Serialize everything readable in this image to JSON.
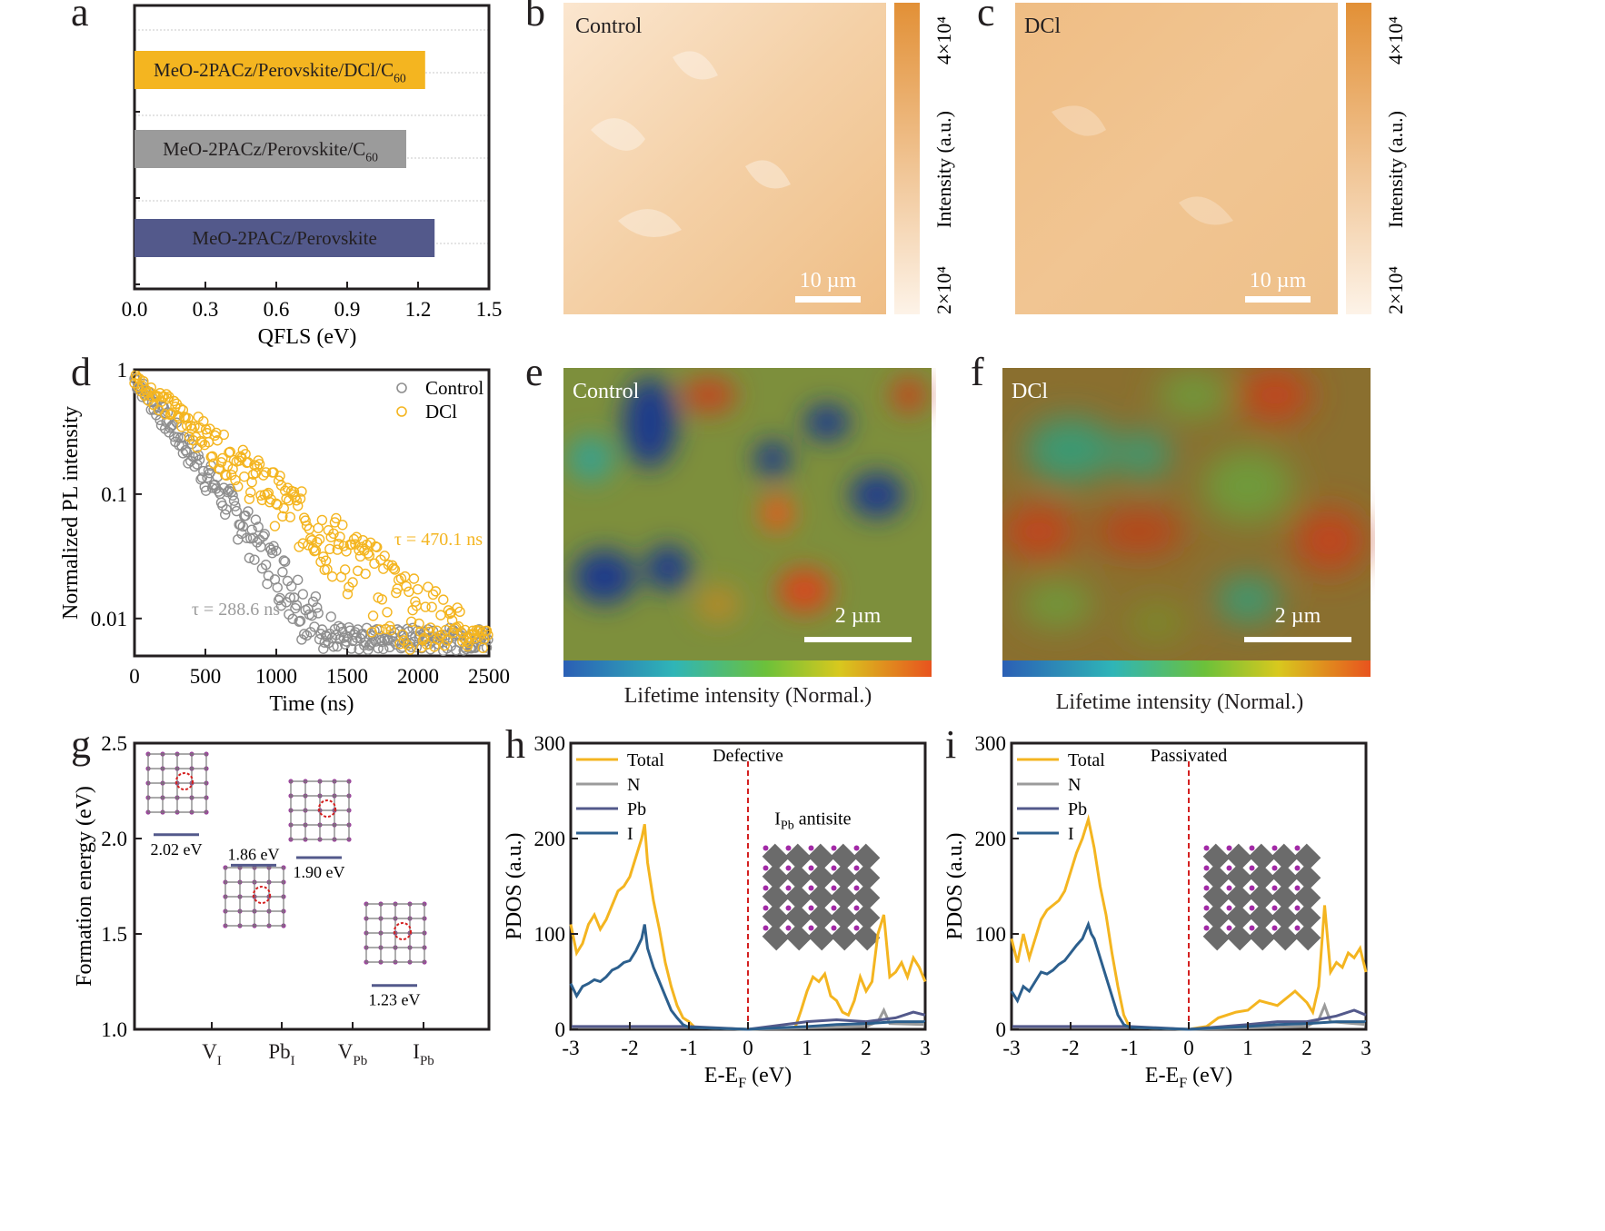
{
  "panels": {
    "a": {
      "letter": "a"
    },
    "b": {
      "letter": "b",
      "label": "Control",
      "scale_label": "10 µm",
      "cbar_max": "4×10⁴",
      "cbar_min": "2×10⁴",
      "cbar_title": "Intensity (a.u.)"
    },
    "c": {
      "letter": "c",
      "label": "DCl",
      "scale_label": "10 µm",
      "cbar_max": "4×10⁴",
      "cbar_min": "2×10⁴",
      "cbar_title": "Intensity (a.u.)"
    },
    "d": {
      "letter": "d"
    },
    "e": {
      "letter": "e",
      "label": "Control",
      "scale_label": "2 µm",
      "cbar_title": "Lifetime intensity (Normal.)"
    },
    "f": {
      "letter": "f",
      "label": "DCl",
      "scale_label": "2 µm",
      "cbar_title": "Lifetime intensity (Normal.)"
    },
    "g": {
      "letter": "g"
    },
    "h": {
      "letter": "h",
      "annotation": "Defective"
    },
    "i": {
      "letter": "i",
      "annotation": "Passivated"
    }
  },
  "colors": {
    "yellow": "#f4b520",
    "gray": "#9b9b9b",
    "navy": "#53598b",
    "blue": "#2c5f8d",
    "red_dash": "#d42020",
    "pl_orange": "#e59532"
  },
  "chart_data": [
    {
      "panel": "a",
      "type": "bar",
      "orientation": "horizontal",
      "categories": [
        "MeO-2PACz/Perovskite/DCl/C60",
        "MeO-2PACz/Perovskite/C60",
        "MeO-2PACz/Perovskite"
      ],
      "values": [
        1.23,
        1.15,
        1.27
      ],
      "bar_colors": [
        "#f4b520",
        "#9b9b9b",
        "#53598b"
      ],
      "xlabel": "QFLS (eV)",
      "xlim": [
        0.0,
        1.5
      ],
      "xticks": [
        "0.0",
        "0.3",
        "0.6",
        "0.9",
        "1.2",
        "1.5"
      ],
      "grid": true
    },
    {
      "panel": "d",
      "type": "scatter",
      "xlabel": "Time (ns)",
      "ylabel": "Normalized PL intensity",
      "xlim": [
        0,
        2500
      ],
      "ylim": [
        0.005,
        1
      ],
      "yscale": "log",
      "xticks": [
        "0",
        "500",
        "1000",
        "1500",
        "2000",
        "2500"
      ],
      "yticks": [
        "1",
        "0.1",
        "0.01"
      ],
      "legend": "top-right",
      "series": [
        {
          "name": "Control",
          "color": "#8e8e8e",
          "tau_label": "τ = 288.6 ns",
          "tau": 288.6
        },
        {
          "name": "DCl",
          "color": "#f4b520",
          "tau_label": "τ = 470.1 ns",
          "tau": 470.1
        }
      ]
    },
    {
      "panel": "g",
      "type": "scatter",
      "ylabel": "Formation energy (eV)",
      "ylim": [
        1.0,
        2.5
      ],
      "yticks": [
        "1.0",
        "1.5",
        "2.0",
        "2.5"
      ],
      "categories": [
        "V_I",
        "Pb_I",
        "V_Pb",
        "I_Pb"
      ],
      "category_labels": [
        {
          "main": "V",
          "sub": "I"
        },
        {
          "main": "Pb",
          "sub": "I"
        },
        {
          "main": "V",
          "sub": "Pb"
        },
        {
          "main": "I",
          "sub": "Pb"
        }
      ],
      "values": [
        2.02,
        1.86,
        1.9,
        1.23
      ],
      "value_labels": [
        "2.02 eV",
        "1.86 eV",
        "1.90 eV",
        "1.23 eV"
      ]
    },
    {
      "panel": "h",
      "type": "line",
      "xlabel": "E-E_F (eV)",
      "ylabel": "PDOS (a.u.)",
      "xlim": [
        -3,
        3
      ],
      "ylim": [
        0,
        300
      ],
      "xticks": [
        "-3",
        "-2",
        "-1",
        "0",
        "1",
        "2",
        "3"
      ],
      "yticks": [
        "0",
        "100",
        "200",
        "300"
      ],
      "legend": "top-left",
      "inset_label": {
        "main": "I",
        "sub": "Pb",
        "rest": " antisite"
      },
      "series": [
        {
          "name": "Total",
          "color": "#f4b520",
          "x": [
            -3,
            -2.9,
            -2.8,
            -2.7,
            -2.6,
            -2.5,
            -2.4,
            -2.3,
            -2.2,
            -2.1,
            -2.0,
            -1.9,
            -1.8,
            -1.75,
            -1.7,
            -1.6,
            -1.5,
            -1.4,
            -1.3,
            -1.2,
            -1.1,
            -1.0,
            -0.9,
            0.0,
            0.8,
            0.9,
            1.0,
            1.1,
            1.2,
            1.3,
            1.4,
            1.5,
            1.6,
            1.7,
            1.8,
            1.9,
            2.0,
            2.1,
            2.2,
            2.3,
            2.4,
            2.5,
            2.6,
            2.7,
            2.8,
            2.9,
            3.0
          ],
          "values": [
            110,
            80,
            90,
            110,
            120,
            105,
            115,
            130,
            145,
            150,
            160,
            180,
            200,
            215,
            175,
            135,
            105,
            70,
            45,
            25,
            12,
            8,
            2,
            0,
            2,
            20,
            40,
            55,
            50,
            58,
            35,
            30,
            18,
            15,
            30,
            55,
            40,
            50,
            100,
            120,
            55,
            60,
            70,
            55,
            75,
            65,
            50
          ]
        },
        {
          "name": "N",
          "color": "#9b9b9b",
          "x": [
            -3,
            -1,
            0,
            2.0,
            2.2,
            2.3,
            2.4,
            3.0
          ],
          "values": [
            2,
            2,
            0,
            3,
            8,
            20,
            6,
            5
          ]
        },
        {
          "name": "Pb",
          "color": "#53598b",
          "x": [
            -3,
            -1,
            0,
            1.0,
            1.5,
            2.0,
            2.5,
            2.8,
            3.0
          ],
          "values": [
            3,
            3,
            0,
            8,
            10,
            8,
            12,
            18,
            15
          ]
        },
        {
          "name": "I",
          "color": "#2c5f8d",
          "x": [
            -3,
            -2.9,
            -2.8,
            -2.7,
            -2.6,
            -2.5,
            -2.4,
            -2.3,
            -2.2,
            -2.1,
            -2.0,
            -1.9,
            -1.8,
            -1.75,
            -1.7,
            -1.6,
            -1.5,
            -1.4,
            -1.3,
            -1.2,
            -1.1,
            -1.0,
            0.0,
            1.0,
            1.5,
            2.0,
            2.5,
            3.0
          ],
          "values": [
            48,
            35,
            45,
            48,
            52,
            50,
            55,
            62,
            65,
            70,
            72,
            82,
            95,
            110,
            85,
            65,
            50,
            35,
            20,
            12,
            5,
            2,
            0,
            3,
            5,
            6,
            8,
            8
          ]
        }
      ]
    },
    {
      "panel": "i",
      "type": "line",
      "xlabel": "E-E_F (eV)",
      "ylabel": "PDOS (a.u.)",
      "xlim": [
        -3,
        3
      ],
      "ylim": [
        0,
        300
      ],
      "xticks": [
        "-3",
        "-2",
        "-1",
        "0",
        "1",
        "2",
        "3"
      ],
      "yticks": [
        "0",
        "100",
        "200",
        "300"
      ],
      "legend": "top-left",
      "series": [
        {
          "name": "Total",
          "color": "#f4b520",
          "x": [
            -3,
            -2.9,
            -2.8,
            -2.7,
            -2.6,
            -2.5,
            -2.4,
            -2.3,
            -2.2,
            -2.1,
            -2.0,
            -1.9,
            -1.8,
            -1.7,
            -1.65,
            -1.6,
            -1.5,
            -1.4,
            -1.3,
            -1.2,
            -1.1,
            -1.0,
            0.0,
            0.3,
            0.5,
            0.8,
            1.0,
            1.2,
            1.5,
            1.8,
            2.0,
            2.1,
            2.2,
            2.3,
            2.4,
            2.5,
            2.6,
            2.7,
            2.8,
            2.9,
            3.0
          ],
          "values": [
            95,
            70,
            100,
            75,
            95,
            115,
            125,
            130,
            135,
            145,
            165,
            185,
            200,
            220,
            205,
            190,
            150,
            120,
            80,
            45,
            15,
            2,
            0,
            3,
            12,
            18,
            20,
            30,
            25,
            40,
            28,
            18,
            45,
            130,
            60,
            70,
            65,
            80,
            75,
            85,
            60
          ]
        },
        {
          "name": "N",
          "color": "#9b9b9b",
          "x": [
            -3,
            -1,
            0,
            2.0,
            2.2,
            2.3,
            2.4,
            3.0
          ],
          "values": [
            2,
            2,
            0,
            3,
            10,
            25,
            8,
            5
          ]
        },
        {
          "name": "Pb",
          "color": "#53598b",
          "x": [
            -3,
            -1,
            0,
            1.0,
            1.5,
            2.0,
            2.5,
            2.8,
            3.0
          ],
          "values": [
            3,
            3,
            0,
            5,
            8,
            8,
            14,
            20,
            15
          ]
        },
        {
          "name": "I",
          "color": "#2c5f8d",
          "x": [
            -3,
            -2.9,
            -2.8,
            -2.7,
            -2.6,
            -2.5,
            -2.4,
            -2.3,
            -2.2,
            -2.1,
            -2.0,
            -1.9,
            -1.8,
            -1.7,
            -1.65,
            -1.6,
            -1.5,
            -1.4,
            -1.3,
            -1.2,
            -1.1,
            -1.0,
            0.0,
            1.0,
            1.5,
            2.0,
            2.5,
            3.0
          ],
          "values": [
            40,
            30,
            45,
            40,
            50,
            60,
            58,
            62,
            68,
            72,
            80,
            88,
            95,
            110,
            100,
            95,
            75,
            55,
            35,
            15,
            5,
            2,
            0,
            3,
            5,
            6,
            8,
            8
          ]
        }
      ]
    }
  ]
}
